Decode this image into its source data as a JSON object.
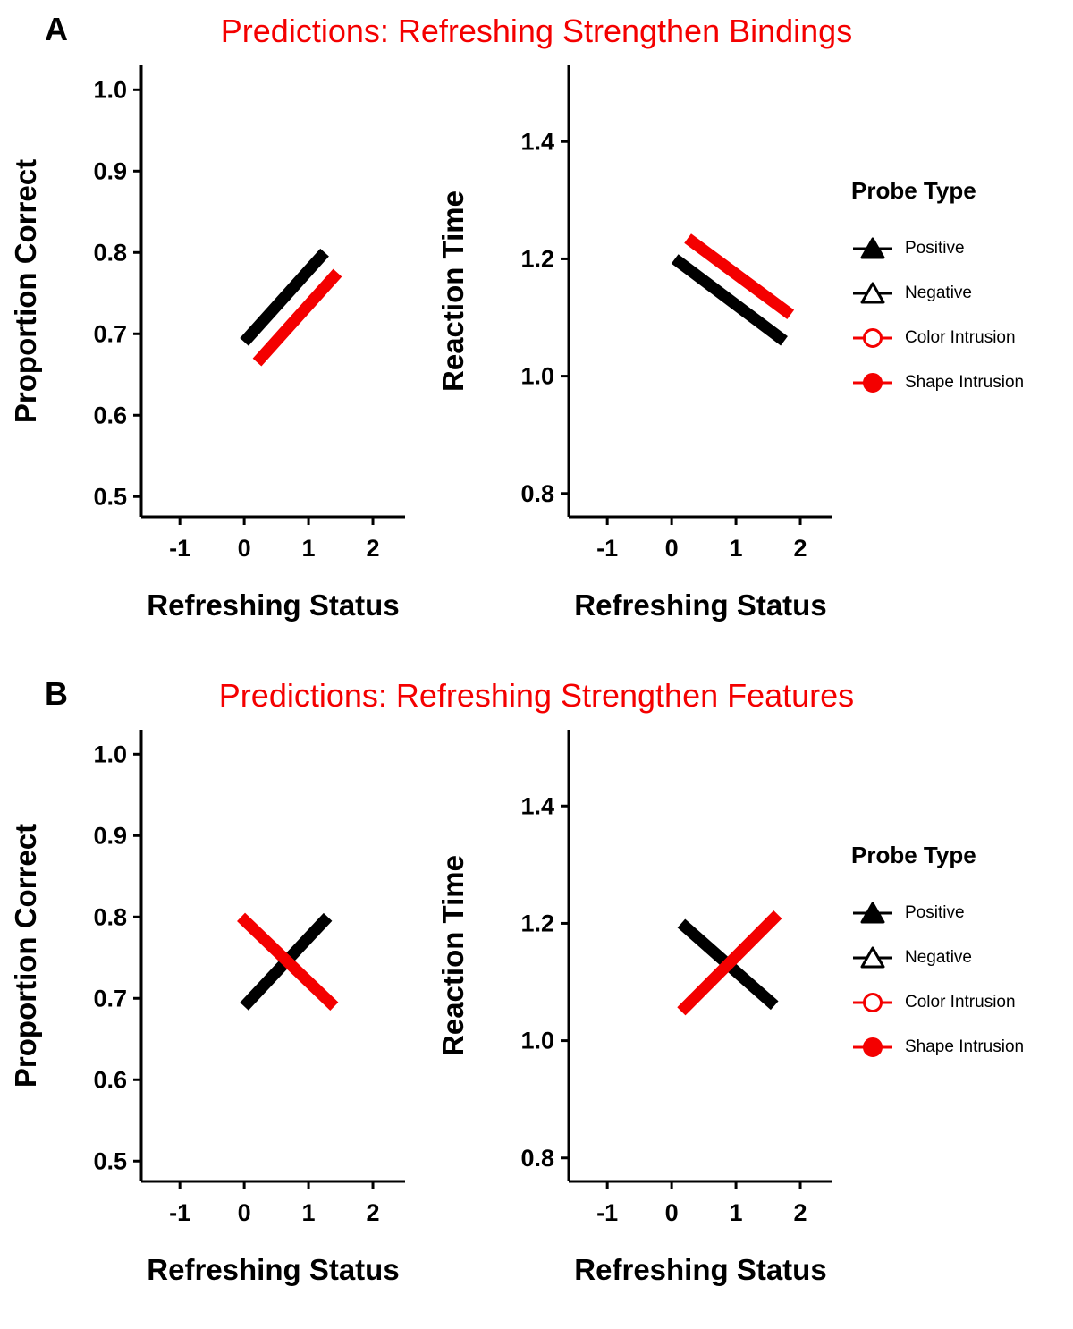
{
  "figure": {
    "background": "#ffffff",
    "accent_red": "#f40000",
    "series_black": "#000000"
  },
  "panels": [
    {
      "label": "A",
      "title": "Predictions: Refreshing Strengthen Bindings",
      "chart_refs": [
        0,
        1
      ]
    },
    {
      "label": "B",
      "title": "Predictions: Refreshing Strengthen Features",
      "chart_refs": [
        2,
        3
      ]
    }
  ],
  "legend": {
    "title": "Probe Type",
    "items": [
      {
        "label": "Positive",
        "marker": "triangle-filled",
        "color": "#000000"
      },
      {
        "label": "Negative",
        "marker": "triangle-open",
        "color": "#000000"
      },
      {
        "label": "Color Intrusion",
        "marker": "circle-open",
        "color": "#f40000"
      },
      {
        "label": "Shape Intrusion",
        "marker": "circle-filled",
        "color": "#f40000"
      }
    ]
  },
  "chart_data": [
    {
      "panel": "A",
      "type": "line",
      "title": "Predictions: Refreshing Strengthen Bindings",
      "xlabel": "Refreshing Status",
      "ylabel": "Proportion Correct",
      "xlim": [
        -1.6,
        2.5
      ],
      "ylim": [
        0.475,
        1.03
      ],
      "xticks": [
        -1,
        0,
        1,
        2
      ],
      "yticks": [
        0.5,
        0.6,
        0.7,
        0.8,
        0.9,
        1.0
      ],
      "grid": false,
      "series": [
        {
          "name": "Positive/Negative (black)",
          "color": "#000000",
          "x": [
            0.0,
            1.25
          ],
          "y": [
            0.69,
            0.8
          ]
        },
        {
          "name": "Color/Shape Intrusion (red)",
          "color": "#f40000",
          "x": [
            0.2,
            1.45
          ],
          "y": [
            0.665,
            0.775
          ]
        }
      ]
    },
    {
      "panel": "A",
      "type": "line",
      "title": "Predictions: Refreshing Strengthen Bindings",
      "xlabel": "Refreshing Status",
      "ylabel": "Reaction Time",
      "xlim": [
        -1.6,
        2.5
      ],
      "ylim": [
        0.76,
        1.53
      ],
      "xticks": [
        -1,
        0,
        1,
        2
      ],
      "yticks": [
        0.8,
        1.0,
        1.2,
        1.4
      ],
      "grid": false,
      "series": [
        {
          "name": "Positive/Negative (black)",
          "color": "#000000",
          "x": [
            0.05,
            1.75
          ],
          "y": [
            1.2,
            1.06
          ]
        },
        {
          "name": "Color/Shape Intrusion (red)",
          "color": "#f40000",
          "x": [
            0.25,
            1.85
          ],
          "y": [
            1.235,
            1.105
          ]
        }
      ]
    },
    {
      "panel": "B",
      "type": "line",
      "title": "Predictions: Refreshing Strengthen Features",
      "xlabel": "Refreshing Status",
      "ylabel": "Proportion Correct",
      "xlim": [
        -1.6,
        2.5
      ],
      "ylim": [
        0.475,
        1.03
      ],
      "xticks": [
        -1,
        0,
        1,
        2
      ],
      "yticks": [
        0.5,
        0.6,
        0.7,
        0.8,
        0.9,
        1.0
      ],
      "grid": false,
      "series": [
        {
          "name": "Positive/Negative (black)",
          "color": "#000000",
          "x": [
            0.0,
            1.3
          ],
          "y": [
            0.69,
            0.8
          ]
        },
        {
          "name": "Color/Shape Intrusion (red)",
          "color": "#f40000",
          "x": [
            -0.05,
            1.4
          ],
          "y": [
            0.8,
            0.69
          ]
        }
      ]
    },
    {
      "panel": "B",
      "type": "line",
      "title": "Predictions: Refreshing Strengthen Features",
      "xlabel": "Refreshing Status",
      "ylabel": "Reaction Time",
      "xlim": [
        -1.6,
        2.5
      ],
      "ylim": [
        0.76,
        1.53
      ],
      "xticks": [
        -1,
        0,
        1,
        2
      ],
      "yticks": [
        0.8,
        1.0,
        1.2,
        1.4
      ],
      "grid": false,
      "series": [
        {
          "name": "Positive/Negative (black)",
          "color": "#000000",
          "x": [
            0.15,
            1.6
          ],
          "y": [
            1.2,
            1.06
          ]
        },
        {
          "name": "Color/Shape Intrusion (red)",
          "color": "#f40000",
          "x": [
            0.15,
            1.65
          ],
          "y": [
            1.05,
            1.215
          ]
        }
      ]
    }
  ]
}
